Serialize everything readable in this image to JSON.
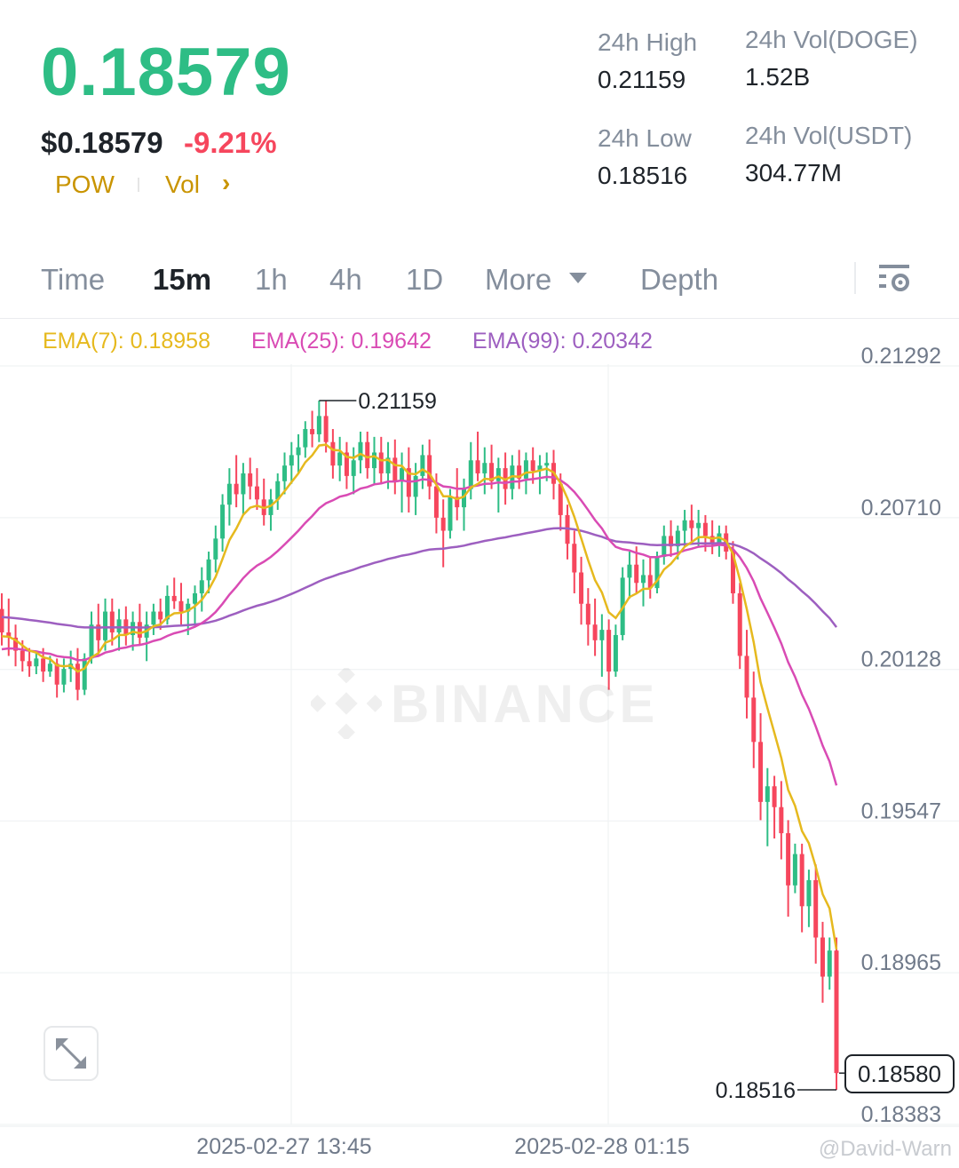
{
  "header": {
    "last_price": "0.18579",
    "usd_price": "$0.18579",
    "change_percent": "-9.21%",
    "tags": [
      "POW",
      "Vol"
    ],
    "tags_chevron": "›"
  },
  "stats": {
    "high_label": "24h High",
    "high_value": "0.21159",
    "vol_base_label": "24h Vol(DOGE)",
    "vol_base_value": "1.52B",
    "low_label": "24h Low",
    "low_value": "0.18516",
    "vol_quote_label": "24h Vol(USDT)",
    "vol_quote_value": "304.77M"
  },
  "tabs": {
    "time": "Time",
    "m15": "15m",
    "h1": "1h",
    "h4": "4h",
    "d1": "1D",
    "more": "More",
    "depth": "Depth",
    "active": "15m"
  },
  "indicators": {
    "ema7": "EMA(7): 0.18958",
    "ema25": "EMA(25): 0.19642",
    "ema99": "EMA(99): 0.20342"
  },
  "colors": {
    "up": "#2ebd85",
    "down": "#f6465d",
    "ema7": "#e6b91e",
    "ema25": "#d94bb4",
    "ema99": "#9d5fc0"
  },
  "chart": {
    "watermark": "BINANCE",
    "credit": "@David-Warn",
    "high_marker": "0.21159",
    "low_marker": "0.18516",
    "current_price": "0.18580"
  },
  "chart_data": {
    "type": "candlestick",
    "interval": "15m",
    "y_ticks": [
      "0.21292",
      "0.20710",
      "0.20128",
      "0.19547",
      "0.18965",
      "0.18383"
    ],
    "ylim": [
      0.18383,
      0.21292
    ],
    "x_ticks": [
      "2025-02-27 13:45",
      "2025-02-28 01:15"
    ],
    "candles": [
      {
        "o": 0.2036,
        "h": 0.2042,
        "l": 0.2022,
        "c": 0.2027
      },
      {
        "o": 0.2027,
        "h": 0.204,
        "l": 0.2018,
        "c": 0.2025
      },
      {
        "o": 0.2025,
        "h": 0.203,
        "l": 0.2014,
        "c": 0.202
      },
      {
        "o": 0.202,
        "h": 0.2024,
        "l": 0.2012,
        "c": 0.2016
      },
      {
        "o": 0.2016,
        "h": 0.2021,
        "l": 0.201,
        "c": 0.2014
      },
      {
        "o": 0.2014,
        "h": 0.202,
        "l": 0.2011,
        "c": 0.2017
      },
      {
        "o": 0.2017,
        "h": 0.2021,
        "l": 0.2008,
        "c": 0.2012
      },
      {
        "o": 0.2012,
        "h": 0.2018,
        "l": 0.201,
        "c": 0.2015
      },
      {
        "o": 0.2015,
        "h": 0.2017,
        "l": 0.2002,
        "c": 0.2007
      },
      {
        "o": 0.2007,
        "h": 0.2017,
        "l": 0.2004,
        "c": 0.2013
      },
      {
        "o": 0.2013,
        "h": 0.202,
        "l": 0.2008,
        "c": 0.2015
      },
      {
        "o": 0.2015,
        "h": 0.2021,
        "l": 0.2001,
        "c": 0.2005
      },
      {
        "o": 0.2005,
        "h": 0.2019,
        "l": 0.2003,
        "c": 0.2017
      },
      {
        "o": 0.2017,
        "h": 0.2035,
        "l": 0.2015,
        "c": 0.203
      },
      {
        "o": 0.203,
        "h": 0.2038,
        "l": 0.2018,
        "c": 0.2024
      },
      {
        "o": 0.2024,
        "h": 0.204,
        "l": 0.202,
        "c": 0.2035
      },
      {
        "o": 0.2035,
        "h": 0.204,
        "l": 0.2022,
        "c": 0.2027
      },
      {
        "o": 0.2027,
        "h": 0.2036,
        "l": 0.202,
        "c": 0.2032
      },
      {
        "o": 0.2032,
        "h": 0.2037,
        "l": 0.2022,
        "c": 0.2026
      },
      {
        "o": 0.2026,
        "h": 0.2035,
        "l": 0.202,
        "c": 0.2031
      },
      {
        "o": 0.2031,
        "h": 0.2038,
        "l": 0.2022,
        "c": 0.2025
      },
      {
        "o": 0.2025,
        "h": 0.2035,
        "l": 0.2016,
        "c": 0.203
      },
      {
        "o": 0.203,
        "h": 0.2038,
        "l": 0.2026,
        "c": 0.2035
      },
      {
        "o": 0.2035,
        "h": 0.204,
        "l": 0.2028,
        "c": 0.2032
      },
      {
        "o": 0.2032,
        "h": 0.2045,
        "l": 0.203,
        "c": 0.2041
      },
      {
        "o": 0.2041,
        "h": 0.2048,
        "l": 0.2036,
        "c": 0.2039
      },
      {
        "o": 0.2039,
        "h": 0.2046,
        "l": 0.203,
        "c": 0.2035
      },
      {
        "o": 0.2035,
        "h": 0.204,
        "l": 0.2026,
        "c": 0.2038
      },
      {
        "o": 0.2038,
        "h": 0.2045,
        "l": 0.203,
        "c": 0.2042
      },
      {
        "o": 0.2042,
        "h": 0.2052,
        "l": 0.2035,
        "c": 0.2047
      },
      {
        "o": 0.2047,
        "h": 0.2058,
        "l": 0.2042,
        "c": 0.2055
      },
      {
        "o": 0.2055,
        "h": 0.2068,
        "l": 0.205,
        "c": 0.2063
      },
      {
        "o": 0.2063,
        "h": 0.208,
        "l": 0.2058,
        "c": 0.2076
      },
      {
        "o": 0.2076,
        "h": 0.209,
        "l": 0.2068,
        "c": 0.2084
      },
      {
        "o": 0.2084,
        "h": 0.2095,
        "l": 0.2075,
        "c": 0.208
      },
      {
        "o": 0.208,
        "h": 0.2092,
        "l": 0.2072,
        "c": 0.2088
      },
      {
        "o": 0.2088,
        "h": 0.2094,
        "l": 0.2078,
        "c": 0.2083
      },
      {
        "o": 0.2083,
        "h": 0.209,
        "l": 0.2074,
        "c": 0.2078
      },
      {
        "o": 0.2078,
        "h": 0.2086,
        "l": 0.2068,
        "c": 0.2072
      },
      {
        "o": 0.2072,
        "h": 0.2082,
        "l": 0.2066,
        "c": 0.2078
      },
      {
        "o": 0.2078,
        "h": 0.2088,
        "l": 0.2074,
        "c": 0.2085
      },
      {
        "o": 0.2085,
        "h": 0.2096,
        "l": 0.208,
        "c": 0.2091
      },
      {
        "o": 0.2091,
        "h": 0.21,
        "l": 0.2084,
        "c": 0.2095
      },
      {
        "o": 0.2095,
        "h": 0.2103,
        "l": 0.2088,
        "c": 0.2098
      },
      {
        "o": 0.2098,
        "h": 0.2108,
        "l": 0.2094,
        "c": 0.2105
      },
      {
        "o": 0.2105,
        "h": 0.2112,
        "l": 0.2098,
        "c": 0.2103
      },
      {
        "o": 0.2103,
        "h": 0.2116,
        "l": 0.21,
        "c": 0.211
      },
      {
        "o": 0.211,
        "h": 0.2116,
        "l": 0.2096,
        "c": 0.21
      },
      {
        "o": 0.21,
        "h": 0.2105,
        "l": 0.2086,
        "c": 0.2091
      },
      {
        "o": 0.2091,
        "h": 0.2102,
        "l": 0.2085,
        "c": 0.2096
      },
      {
        "o": 0.2096,
        "h": 0.21,
        "l": 0.2082,
        "c": 0.2087
      },
      {
        "o": 0.2087,
        "h": 0.2098,
        "l": 0.208,
        "c": 0.2093
      },
      {
        "o": 0.2093,
        "h": 0.2104,
        "l": 0.2088,
        "c": 0.21
      },
      {
        "o": 0.21,
        "h": 0.2104,
        "l": 0.2086,
        "c": 0.209
      },
      {
        "o": 0.209,
        "h": 0.2102,
        "l": 0.2084,
        "c": 0.2096
      },
      {
        "o": 0.2096,
        "h": 0.2102,
        "l": 0.2084,
        "c": 0.2088
      },
      {
        "o": 0.2088,
        "h": 0.21,
        "l": 0.2082,
        "c": 0.2094
      },
      {
        "o": 0.2094,
        "h": 0.2101,
        "l": 0.208,
        "c": 0.2085
      },
      {
        "o": 0.2085,
        "h": 0.2096,
        "l": 0.2073,
        "c": 0.209
      },
      {
        "o": 0.209,
        "h": 0.2098,
        "l": 0.2073,
        "c": 0.2079
      },
      {
        "o": 0.2079,
        "h": 0.2092,
        "l": 0.2072,
        "c": 0.2087
      },
      {
        "o": 0.2087,
        "h": 0.2099,
        "l": 0.2082,
        "c": 0.2095
      },
      {
        "o": 0.2095,
        "h": 0.2101,
        "l": 0.2078,
        "c": 0.2083
      },
      {
        "o": 0.2083,
        "h": 0.2088,
        "l": 0.2065,
        "c": 0.2071
      },
      {
        "o": 0.2071,
        "h": 0.2078,
        "l": 0.2052,
        "c": 0.2066
      },
      {
        "o": 0.2066,
        "h": 0.2082,
        "l": 0.2063,
        "c": 0.2079
      },
      {
        "o": 0.2079,
        "h": 0.209,
        "l": 0.207,
        "c": 0.2075
      },
      {
        "o": 0.2075,
        "h": 0.2086,
        "l": 0.2066,
        "c": 0.2082
      },
      {
        "o": 0.2082,
        "h": 0.21,
        "l": 0.2078,
        "c": 0.2093
      },
      {
        "o": 0.2093,
        "h": 0.2104,
        "l": 0.2085,
        "c": 0.2088
      },
      {
        "o": 0.2088,
        "h": 0.2098,
        "l": 0.208,
        "c": 0.2092
      },
      {
        "o": 0.2092,
        "h": 0.2099,
        "l": 0.2082,
        "c": 0.2085
      },
      {
        "o": 0.2085,
        "h": 0.2094,
        "l": 0.2073,
        "c": 0.209
      },
      {
        "o": 0.209,
        "h": 0.2096,
        "l": 0.2076,
        "c": 0.2082
      },
      {
        "o": 0.2082,
        "h": 0.2095,
        "l": 0.2078,
        "c": 0.2091
      },
      {
        "o": 0.2091,
        "h": 0.2097,
        "l": 0.2082,
        "c": 0.2086
      },
      {
        "o": 0.2086,
        "h": 0.2096,
        "l": 0.208,
        "c": 0.2093
      },
      {
        "o": 0.2093,
        "h": 0.2098,
        "l": 0.2084,
        "c": 0.2089
      },
      {
        "o": 0.2089,
        "h": 0.2095,
        "l": 0.208,
        "c": 0.2091
      },
      {
        "o": 0.2091,
        "h": 0.2096,
        "l": 0.2085,
        "c": 0.2092
      },
      {
        "o": 0.2092,
        "h": 0.2097,
        "l": 0.2078,
        "c": 0.2084
      },
      {
        "o": 0.2084,
        "h": 0.2088,
        "l": 0.2066,
        "c": 0.2072
      },
      {
        "o": 0.2072,
        "h": 0.2076,
        "l": 0.2055,
        "c": 0.2061
      },
      {
        "o": 0.2061,
        "h": 0.2066,
        "l": 0.2042,
        "c": 0.205
      },
      {
        "o": 0.205,
        "h": 0.2056,
        "l": 0.203,
        "c": 0.2038
      },
      {
        "o": 0.2038,
        "h": 0.2044,
        "l": 0.2022,
        "c": 0.203
      },
      {
        "o": 0.203,
        "h": 0.204,
        "l": 0.2018,
        "c": 0.2024
      },
      {
        "o": 0.2024,
        "h": 0.2034,
        "l": 0.201,
        "c": 0.2028
      },
      {
        "o": 0.2028,
        "h": 0.2032,
        "l": 0.2005,
        "c": 0.2012
      },
      {
        "o": 0.2012,
        "h": 0.203,
        "l": 0.201,
        "c": 0.2026
      },
      {
        "o": 0.2026,
        "h": 0.2052,
        "l": 0.2024,
        "c": 0.2048
      },
      {
        "o": 0.2048,
        "h": 0.2058,
        "l": 0.204,
        "c": 0.2053
      },
      {
        "o": 0.2053,
        "h": 0.206,
        "l": 0.2042,
        "c": 0.2046
      },
      {
        "o": 0.2046,
        "h": 0.2055,
        "l": 0.2037,
        "c": 0.2049
      },
      {
        "o": 0.2049,
        "h": 0.2056,
        "l": 0.204,
        "c": 0.2044
      },
      {
        "o": 0.2044,
        "h": 0.2058,
        "l": 0.2042,
        "c": 0.2056
      },
      {
        "o": 0.2056,
        "h": 0.2068,
        "l": 0.2053,
        "c": 0.2064
      },
      {
        "o": 0.2064,
        "h": 0.207,
        "l": 0.2056,
        "c": 0.206
      },
      {
        "o": 0.206,
        "h": 0.2068,
        "l": 0.2055,
        "c": 0.2066
      },
      {
        "o": 0.2066,
        "h": 0.2074,
        "l": 0.206,
        "c": 0.207
      },
      {
        "o": 0.207,
        "h": 0.2076,
        "l": 0.2062,
        "c": 0.2067
      },
      {
        "o": 0.2067,
        "h": 0.2074,
        "l": 0.206,
        "c": 0.2069
      },
      {
        "o": 0.2069,
        "h": 0.2072,
        "l": 0.2058,
        "c": 0.2064
      },
      {
        "o": 0.2064,
        "h": 0.207,
        "l": 0.2057,
        "c": 0.2061
      },
      {
        "o": 0.2061,
        "h": 0.2068,
        "l": 0.2056,
        "c": 0.2065
      },
      {
        "o": 0.2065,
        "h": 0.2068,
        "l": 0.2055,
        "c": 0.2058
      },
      {
        "o": 0.2058,
        "h": 0.2062,
        "l": 0.2038,
        "c": 0.2042
      },
      {
        "o": 0.2042,
        "h": 0.2046,
        "l": 0.2013,
        "c": 0.2018
      },
      {
        "o": 0.2018,
        "h": 0.2028,
        "l": 0.1994,
        "c": 0.2002
      },
      {
        "o": 0.2002,
        "h": 0.2012,
        "l": 0.1975,
        "c": 0.1985
      },
      {
        "o": 0.1985,
        "h": 0.1996,
        "l": 0.1955,
        "c": 0.1962
      },
      {
        "o": 0.1962,
        "h": 0.1975,
        "l": 0.1945,
        "c": 0.1968
      },
      {
        "o": 0.1968,
        "h": 0.1972,
        "l": 0.1948,
        "c": 0.196
      },
      {
        "o": 0.196,
        "h": 0.197,
        "l": 0.194,
        "c": 0.195
      },
      {
        "o": 0.195,
        "h": 0.1955,
        "l": 0.1918,
        "c": 0.193
      },
      {
        "o": 0.193,
        "h": 0.1946,
        "l": 0.1927,
        "c": 0.1942
      },
      {
        "o": 0.1942,
        "h": 0.1946,
        "l": 0.1912,
        "c": 0.1922
      },
      {
        "o": 0.1922,
        "h": 0.1936,
        "l": 0.1914,
        "c": 0.1932
      },
      {
        "o": 0.1932,
        "h": 0.1938,
        "l": 0.19,
        "c": 0.191
      },
      {
        "o": 0.191,
        "h": 0.1916,
        "l": 0.1885,
        "c": 0.1895
      },
      {
        "o": 0.1895,
        "h": 0.191,
        "l": 0.189,
        "c": 0.1905
      },
      {
        "o": 0.1905,
        "h": 0.191,
        "l": 0.1852,
        "c": 0.1858
      }
    ],
    "ema7_last": 0.18958,
    "ema25_last": 0.19642,
    "ema99_last": 0.20342,
    "high": 0.21159,
    "low": 0.18516
  }
}
